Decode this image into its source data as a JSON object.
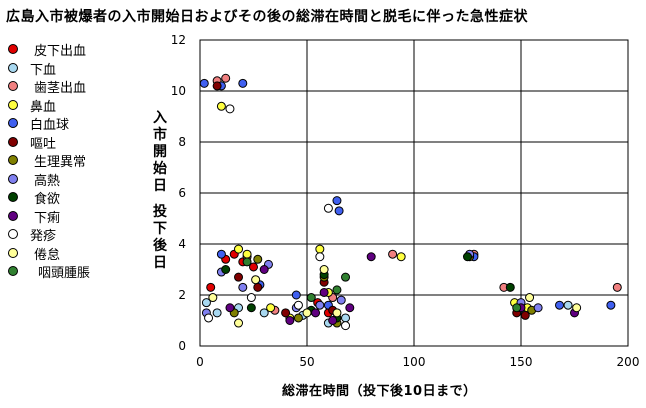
{
  "chart_data": {
    "type": "scatter",
    "title": "広島入市被爆者の入市開始日およびその後の総滞在時間と脱毛に伴った急性症状",
    "xlabel": "総滞在時間（投下後10日まで）",
    "ylabel_col1": [
      "入",
      "市",
      "開",
      "始",
      "日"
    ],
    "ylabel_col2": [
      "投",
      "下",
      "後",
      "日"
    ],
    "xlim": [
      0,
      200
    ],
    "ylim": [
      0,
      12
    ],
    "x_ticks": [
      "0",
      "50",
      "100",
      "150",
      "200"
    ],
    "y_ticks": [
      "0",
      "2",
      "4",
      "6",
      "8",
      "10",
      "12"
    ],
    "grid": true,
    "legend_position": "left",
    "series": [
      {
        "name": "皮下出血",
        "color": "#e00000",
        "points": [
          [
            5,
            2.3
          ],
          [
            12,
            3.4
          ],
          [
            16,
            3.6
          ],
          [
            20,
            3.3
          ],
          [
            25,
            3.1
          ],
          [
            55,
            1.7
          ],
          [
            60,
            1.3
          ],
          [
            150,
            1.4
          ]
        ]
      },
      {
        "name": "下血",
        "color": "#a8d8f0",
        "points": [
          [
            3,
            1.7
          ],
          [
            8,
            1.3
          ],
          [
            18,
            1.5
          ],
          [
            30,
            1.3
          ],
          [
            48,
            1.2
          ],
          [
            60,
            0.9
          ],
          [
            68,
            1.1
          ],
          [
            148,
            1.6
          ],
          [
            152,
            1.3
          ],
          [
            172,
            1.6
          ]
        ]
      },
      {
        "name": "歯茎出血",
        "color": "#f08080",
        "points": [
          [
            8,
            10.4
          ],
          [
            12,
            10.5
          ],
          [
            22,
            3.5
          ],
          [
            35,
            1.4
          ],
          [
            62,
            1.9
          ],
          [
            90,
            3.6
          ],
          [
            128,
            3.6
          ],
          [
            142,
            2.3
          ],
          [
            195,
            2.3
          ]
        ]
      },
      {
        "name": "鼻血",
        "color": "#ffff40",
        "points": [
          [
            10,
            9.4
          ],
          [
            18,
            3.8
          ],
          [
            22,
            3.6
          ],
          [
            33,
            1.5
          ],
          [
            42,
            1.1
          ],
          [
            56,
            3.8
          ],
          [
            60,
            2.1
          ],
          [
            94,
            3.5
          ],
          [
            147,
            1.7
          ],
          [
            153,
            1.5
          ]
        ]
      },
      {
        "name": "白血球",
        "color": "#4060f0",
        "points": [
          [
            2,
            10.3
          ],
          [
            10,
            10.2
          ],
          [
            20,
            10.3
          ],
          [
            10,
            3.6
          ],
          [
            28,
            2.4
          ],
          [
            45,
            2.0
          ],
          [
            64,
            5.7
          ],
          [
            65,
            5.3
          ],
          [
            60,
            1.6
          ],
          [
            128,
            3.5
          ],
          [
            168,
            1.6
          ],
          [
            192,
            1.6
          ]
        ]
      },
      {
        "name": "嘔吐",
        "color": "#800000",
        "points": [
          [
            8,
            10.2
          ],
          [
            18,
            2.7
          ],
          [
            27,
            2.3
          ],
          [
            40,
            1.3
          ],
          [
            58,
            2.5
          ],
          [
            62,
            1.4
          ],
          [
            148,
            1.3
          ],
          [
            152,
            1.2
          ]
        ]
      },
      {
        "name": "生理異常",
        "color": "#808000",
        "points": [
          [
            16,
            1.3
          ],
          [
            27,
            3.4
          ],
          [
            46,
            1.1
          ],
          [
            58,
            2.7
          ],
          [
            64,
            0.9
          ],
          [
            126,
            3.5
          ],
          [
            155,
            1.4
          ]
        ]
      },
      {
        "name": "高熱",
        "color": "#8080f0",
        "points": [
          [
            3,
            1.3
          ],
          [
            10,
            2.9
          ],
          [
            20,
            2.3
          ],
          [
            32,
            3.2
          ],
          [
            45,
            1.5
          ],
          [
            56,
            1.6
          ],
          [
            66,
            1.8
          ],
          [
            126,
            3.6
          ],
          [
            150,
            1.7
          ],
          [
            158,
            1.5
          ]
        ]
      },
      {
        "name": "食欲",
        "color": "#004000",
        "points": [
          [
            12,
            3.0
          ],
          [
            24,
            1.5
          ],
          [
            52,
            1.4
          ],
          [
            58,
            2.8
          ],
          [
            64,
            1.1
          ],
          [
            125,
            3.5
          ],
          [
            145,
            2.3
          ]
        ]
      },
      {
        "name": "下痢",
        "color": "#600080",
        "points": [
          [
            14,
            1.5
          ],
          [
            30,
            3.0
          ],
          [
            42,
            1.0
          ],
          [
            54,
            1.3
          ],
          [
            58,
            2.1
          ],
          [
            62,
            1.0
          ],
          [
            70,
            1.5
          ],
          [
            80,
            3.5
          ],
          [
            150,
            1.5
          ],
          [
            175,
            1.3
          ]
        ]
      },
      {
        "name": "発疹",
        "color": "#ffffff",
        "points": [
          [
            14,
            9.3
          ],
          [
            4,
            1.1
          ],
          [
            24,
            1.9
          ],
          [
            46,
            1.6
          ],
          [
            60,
            5.4
          ],
          [
            68,
            0.8
          ],
          [
            56,
            3.5
          ]
        ]
      },
      {
        "name": "倦怠",
        "color": "#ffff99",
        "points": [
          [
            6,
            1.9
          ],
          [
            18,
            0.9
          ],
          [
            26,
            2.6
          ],
          [
            50,
            1.3
          ],
          [
            58,
            3.0
          ],
          [
            64,
            1.3
          ],
          [
            176,
            1.5
          ],
          [
            154,
            1.9
          ]
        ]
      },
      {
        "name": "咽頭腫脹",
        "color": "#308030",
        "points": [
          [
            22,
            3.3
          ],
          [
            52,
            1.9
          ],
          [
            64,
            2.2
          ],
          [
            68,
            2.7
          ],
          [
            148,
            1.5
          ]
        ]
      }
    ]
  }
}
